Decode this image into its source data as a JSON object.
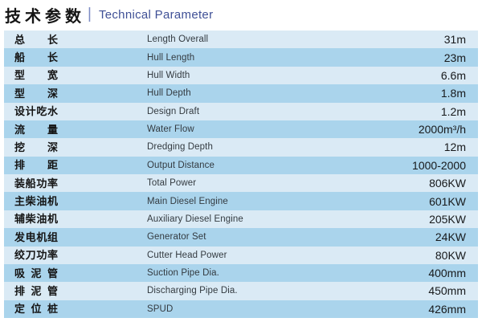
{
  "header": {
    "title_cn": "技术参数",
    "separator": "|",
    "title_en": "Technical Parameter"
  },
  "colors": {
    "row_light": "#daeaf5",
    "row_dark": "#aad4ec",
    "title_accent": "#3f5096",
    "separator_blue": "#7c8cc4"
  },
  "table": {
    "rows": [
      {
        "cn": "总长",
        "en": "Length Overall",
        "value": "31m"
      },
      {
        "cn": "船长",
        "en": "Hull Length",
        "value": "23m"
      },
      {
        "cn": "型宽",
        "en": "Hull Width",
        "value": "6.6m"
      },
      {
        "cn": "型深",
        "en": "Hull Depth",
        "value": "1.8m"
      },
      {
        "cn": "设计吃水",
        "en": "Design Draft",
        "value": "1.2m"
      },
      {
        "cn": "流量",
        "en": "Water Flow",
        "value": "2000m³/h"
      },
      {
        "cn": "挖深",
        "en": "Dredging Depth",
        "value": "12m"
      },
      {
        "cn": "排距",
        "en": "Output Distance",
        "value": "1000-2000"
      },
      {
        "cn": "装船功率",
        "en": "Total Power",
        "value": "806KW"
      },
      {
        "cn": "主柴油机",
        "en": "Main Diesel Engine",
        "value": "601KW"
      },
      {
        "cn": "辅柴油机",
        "en": "Auxiliary Diesel Engine",
        "value": "205KW"
      },
      {
        "cn": "发电机组",
        "en": "Generator Set",
        "value": "24KW"
      },
      {
        "cn": "绞刀功率",
        "en": "Cutter Head Power",
        "value": "80KW"
      },
      {
        "cn": "吸泥管",
        "en": "Suction Pipe Dia.",
        "value": "400mm"
      },
      {
        "cn": "排泥管",
        "en": "Discharging Pipe Dia.",
        "value": "450mm"
      },
      {
        "cn": "定位桩",
        "en": "SPUD",
        "value": "426mm"
      }
    ]
  }
}
